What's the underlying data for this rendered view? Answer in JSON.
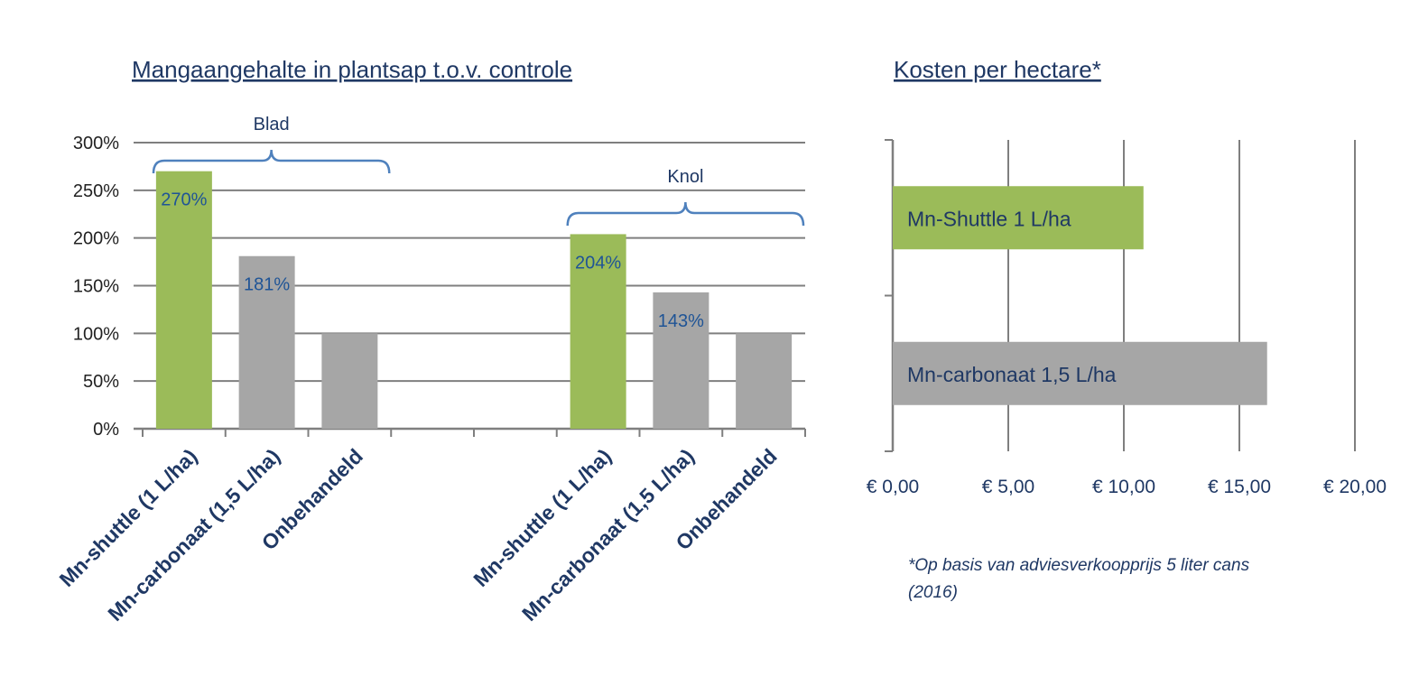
{
  "colors": {
    "green": "#9bbb59",
    "gray": "#a6a6a6",
    "grid": "#7f7f7f",
    "text": "#1f3864",
    "bracket": "#4f81bd"
  },
  "chart_data": [
    {
      "type": "bar",
      "title": "Mangaangehalte in plantsap t.o.v. controle",
      "ylim": [
        0,
        3.0
      ],
      "yticks": [
        "0%",
        "50%",
        "100%",
        "150%",
        "200%",
        "250%",
        "300%"
      ],
      "categories": [
        "Mn-shuttle (1 L/ha)",
        "Mn-carbonaat (1,5 L/ha)",
        "Onbehandeld",
        "",
        "",
        "Mn-shuttle (1 L/ha)",
        "Mn-carbonaat (1,5 L/ha)",
        "Onbehandeld"
      ],
      "values": [
        2.7,
        1.81,
        1.0,
        null,
        null,
        2.04,
        1.43,
        1.0
      ],
      "data_labels": [
        "270%",
        "181%",
        "",
        "",
        "",
        "204%",
        "143%",
        ""
      ],
      "bar_colors": [
        "green",
        "gray",
        "gray",
        "",
        "",
        "green",
        "gray",
        "gray"
      ],
      "groups": [
        {
          "label": "Blad",
          "from": 0,
          "to": 2
        },
        {
          "label": "Knol",
          "from": 5,
          "to": 7
        }
      ],
      "grid": true
    },
    {
      "type": "bar",
      "orientation": "horizontal",
      "title": "Kosten per hectare*",
      "xlim": [
        0,
        20
      ],
      "xticks": [
        "€ 0,00",
        "€ 5,00",
        "€ 10,00",
        "€ 15,00",
        "€ 20,00"
      ],
      "categories": [
        "Mn-Shuttle 1 L/ha",
        "Mn-carbonaat 1,5 L/ha"
      ],
      "values": [
        10.85,
        16.2
      ],
      "bar_colors": [
        "green",
        "gray"
      ],
      "footnote": [
        "*Op basis van adviesverkoopprijs 5 liter cans",
        "(2016)"
      ],
      "grid": true
    }
  ]
}
